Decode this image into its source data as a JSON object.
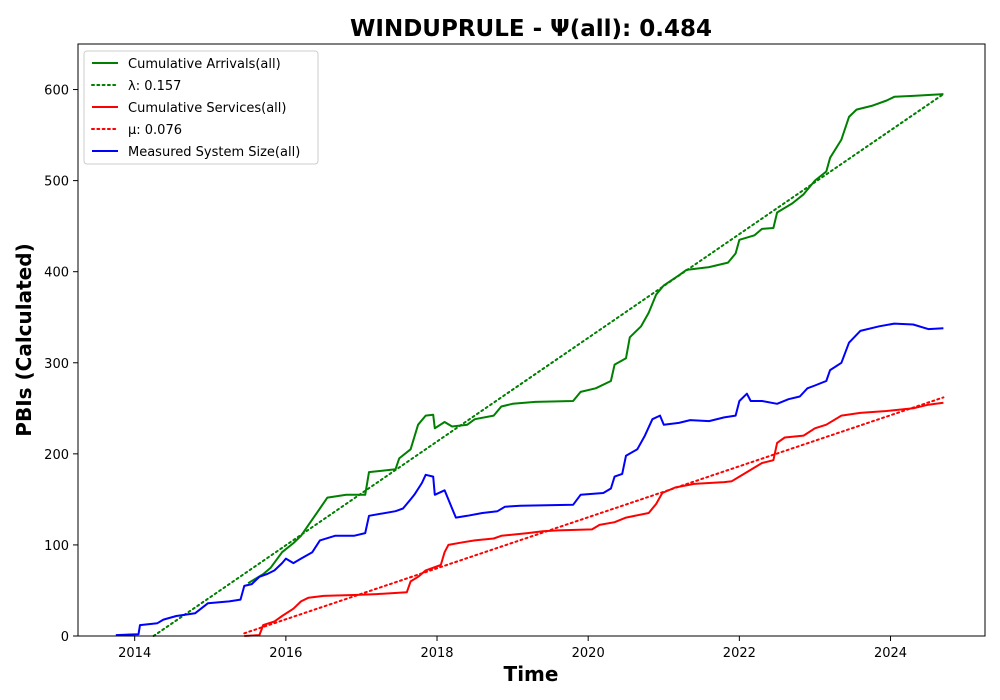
{
  "chart_data": {
    "type": "line",
    "title": "WINDUPRULE -  Ψ(all): 0.484",
    "xlabel": "Time",
    "ylabel": "PBIs (Calculated)",
    "xlim": [
      2013.25,
      2025.25
    ],
    "ylim": [
      0,
      650
    ],
    "x_ticks": [
      2014,
      2016,
      2018,
      2020,
      2022,
      2024
    ],
    "y_ticks": [
      0,
      100,
      200,
      300,
      400,
      500,
      600
    ],
    "grid": false,
    "legend_position": "top-left",
    "series": [
      {
        "name": "Cumulative Arrivals(all)",
        "color": "#008000",
        "style": "solid",
        "points": [
          [
            2015.5,
            58
          ],
          [
            2015.7,
            68
          ],
          [
            2015.8,
            75
          ],
          [
            2015.95,
            92
          ],
          [
            2016.1,
            102
          ],
          [
            2016.2,
            110
          ],
          [
            2016.3,
            122
          ],
          [
            2016.45,
            140
          ],
          [
            2016.55,
            152
          ],
          [
            2016.8,
            155
          ],
          [
            2017.05,
            155
          ],
          [
            2017.1,
            180
          ],
          [
            2017.45,
            183
          ],
          [
            2017.5,
            195
          ],
          [
            2017.65,
            205
          ],
          [
            2017.75,
            232
          ],
          [
            2017.85,
            242
          ],
          [
            2017.95,
            243
          ],
          [
            2017.97,
            228
          ],
          [
            2018.1,
            235
          ],
          [
            2018.2,
            230
          ],
          [
            2018.4,
            232
          ],
          [
            2018.5,
            238
          ],
          [
            2018.75,
            242
          ],
          [
            2018.85,
            252
          ],
          [
            2019.0,
            255
          ],
          [
            2019.3,
            257
          ],
          [
            2019.8,
            258
          ],
          [
            2019.9,
            268
          ],
          [
            2020.1,
            272
          ],
          [
            2020.3,
            280
          ],
          [
            2020.35,
            298
          ],
          [
            2020.5,
            305
          ],
          [
            2020.55,
            328
          ],
          [
            2020.7,
            340
          ],
          [
            2020.8,
            355
          ],
          [
            2020.9,
            375
          ],
          [
            2021.0,
            385
          ],
          [
            2021.2,
            396
          ],
          [
            2021.3,
            402
          ],
          [
            2021.6,
            405
          ],
          [
            2021.85,
            410
          ],
          [
            2021.95,
            420
          ],
          [
            2022.0,
            435
          ],
          [
            2022.2,
            440
          ],
          [
            2022.3,
            447
          ],
          [
            2022.45,
            448
          ],
          [
            2022.5,
            465
          ],
          [
            2022.7,
            475
          ],
          [
            2022.85,
            485
          ],
          [
            2023.0,
            500
          ],
          [
            2023.15,
            510
          ],
          [
            2023.2,
            525
          ],
          [
            2023.35,
            545
          ],
          [
            2023.45,
            570
          ],
          [
            2023.55,
            578
          ],
          [
            2023.75,
            582
          ],
          [
            2023.95,
            588
          ],
          [
            2024.05,
            592
          ],
          [
            2024.3,
            593
          ],
          [
            2024.7,
            595
          ]
        ]
      },
      {
        "name": "λ: 0.157",
        "color": "#008000",
        "style": "dotted",
        "points": [
          [
            2014.25,
            0
          ],
          [
            2024.7,
            595
          ]
        ]
      },
      {
        "name": "Cumulative Services(all)",
        "color": "#ff0000",
        "style": "solid",
        "points": [
          [
            2015.45,
            0
          ],
          [
            2015.65,
            1
          ],
          [
            2015.7,
            12
          ],
          [
            2015.85,
            16
          ],
          [
            2015.95,
            22
          ],
          [
            2016.1,
            30
          ],
          [
            2016.2,
            38
          ],
          [
            2016.3,
            42
          ],
          [
            2016.5,
            44
          ],
          [
            2016.9,
            45
          ],
          [
            2017.2,
            46
          ],
          [
            2017.6,
            48
          ],
          [
            2017.65,
            60
          ],
          [
            2017.75,
            65
          ],
          [
            2017.85,
            72
          ],
          [
            2018.05,
            78
          ],
          [
            2018.1,
            92
          ],
          [
            2018.15,
            100
          ],
          [
            2018.35,
            103
          ],
          [
            2018.5,
            105
          ],
          [
            2018.75,
            107
          ],
          [
            2018.85,
            110
          ],
          [
            2019.2,
            113
          ],
          [
            2019.4,
            115
          ],
          [
            2019.6,
            116
          ],
          [
            2020.05,
            117
          ],
          [
            2020.15,
            122
          ],
          [
            2020.35,
            125
          ],
          [
            2020.5,
            130
          ],
          [
            2020.8,
            135
          ],
          [
            2020.9,
            145
          ],
          [
            2020.98,
            157
          ],
          [
            2021.15,
            163
          ],
          [
            2021.4,
            167
          ],
          [
            2021.8,
            169
          ],
          [
            2021.9,
            170
          ],
          [
            2022.0,
            175
          ],
          [
            2022.1,
            180
          ],
          [
            2022.3,
            190
          ],
          [
            2022.45,
            193
          ],
          [
            2022.5,
            212
          ],
          [
            2022.6,
            218
          ],
          [
            2022.85,
            220
          ],
          [
            2023.0,
            228
          ],
          [
            2023.15,
            232
          ],
          [
            2023.35,
            242
          ],
          [
            2023.6,
            245
          ],
          [
            2023.95,
            247
          ],
          [
            2024.3,
            250
          ],
          [
            2024.5,
            254
          ],
          [
            2024.7,
            256
          ]
        ]
      },
      {
        "name": "μ: 0.076",
        "color": "#ff0000",
        "style": "dotted",
        "points": [
          [
            2015.45,
            3
          ],
          [
            2024.7,
            262
          ]
        ]
      },
      {
        "name": "Measured System Size(all)",
        "color": "#0000ff",
        "style": "solid",
        "points": [
          [
            2013.75,
            1
          ],
          [
            2014.05,
            2
          ],
          [
            2014.07,
            12
          ],
          [
            2014.3,
            14
          ],
          [
            2014.38,
            18
          ],
          [
            2014.55,
            22
          ],
          [
            2014.8,
            25
          ],
          [
            2014.97,
            36
          ],
          [
            2015.25,
            38
          ],
          [
            2015.4,
            40
          ],
          [
            2015.45,
            55
          ],
          [
            2015.55,
            57
          ],
          [
            2015.65,
            65
          ],
          [
            2015.75,
            68
          ],
          [
            2015.85,
            72
          ],
          [
            2015.95,
            80
          ],
          [
            2016.0,
            85
          ],
          [
            2016.1,
            80
          ],
          [
            2016.2,
            85
          ],
          [
            2016.35,
            92
          ],
          [
            2016.45,
            105
          ],
          [
            2016.65,
            110
          ],
          [
            2016.9,
            110
          ],
          [
            2017.05,
            113
          ],
          [
            2017.1,
            132
          ],
          [
            2017.45,
            137
          ],
          [
            2017.55,
            140
          ],
          [
            2017.65,
            150
          ],
          [
            2017.7,
            155
          ],
          [
            2017.8,
            168
          ],
          [
            2017.85,
            177
          ],
          [
            2017.95,
            175
          ],
          [
            2017.97,
            155
          ],
          [
            2018.1,
            160
          ],
          [
            2018.2,
            140
          ],
          [
            2018.25,
            130
          ],
          [
            2018.4,
            132
          ],
          [
            2018.6,
            135
          ],
          [
            2018.8,
            137
          ],
          [
            2018.9,
            142
          ],
          [
            2019.1,
            143
          ],
          [
            2019.8,
            144
          ],
          [
            2019.9,
            155
          ],
          [
            2020.2,
            157
          ],
          [
            2020.3,
            162
          ],
          [
            2020.35,
            175
          ],
          [
            2020.45,
            178
          ],
          [
            2020.5,
            198
          ],
          [
            2020.65,
            205
          ],
          [
            2020.75,
            220
          ],
          [
            2020.85,
            238
          ],
          [
            2020.95,
            242
          ],
          [
            2021.0,
            232
          ],
          [
            2021.2,
            234
          ],
          [
            2021.35,
            237
          ],
          [
            2021.6,
            236
          ],
          [
            2021.8,
            240
          ],
          [
            2021.95,
            242
          ],
          [
            2022.0,
            258
          ],
          [
            2022.1,
            266
          ],
          [
            2022.15,
            258
          ],
          [
            2022.3,
            258
          ],
          [
            2022.5,
            255
          ],
          [
            2022.65,
            260
          ],
          [
            2022.8,
            263
          ],
          [
            2022.9,
            272
          ],
          [
            2023.0,
            275
          ],
          [
            2023.15,
            280
          ],
          [
            2023.2,
            292
          ],
          [
            2023.35,
            300
          ],
          [
            2023.45,
            322
          ],
          [
            2023.6,
            335
          ],
          [
            2023.85,
            340
          ],
          [
            2024.05,
            343
          ],
          [
            2024.3,
            342
          ],
          [
            2024.5,
            337
          ],
          [
            2024.7,
            338
          ]
        ]
      }
    ]
  }
}
